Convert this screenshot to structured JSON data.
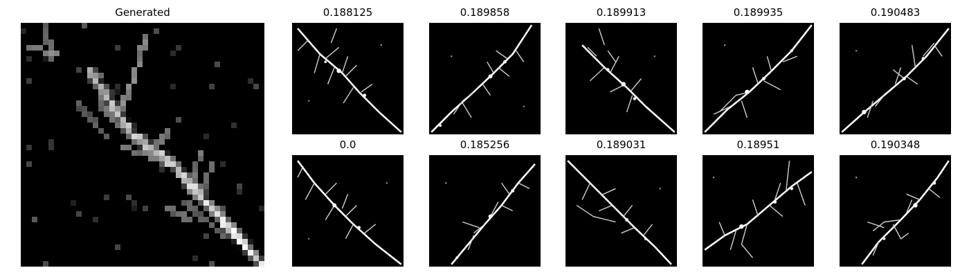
{
  "main": {
    "title": "Generated"
  },
  "grid": {
    "titles": [
      "0.188125",
      "0.189858",
      "0.189913",
      "0.189935",
      "0.190483",
      "0.0",
      "0.185256",
      "0.189031",
      "0.18951",
      "0.190348"
    ]
  }
}
